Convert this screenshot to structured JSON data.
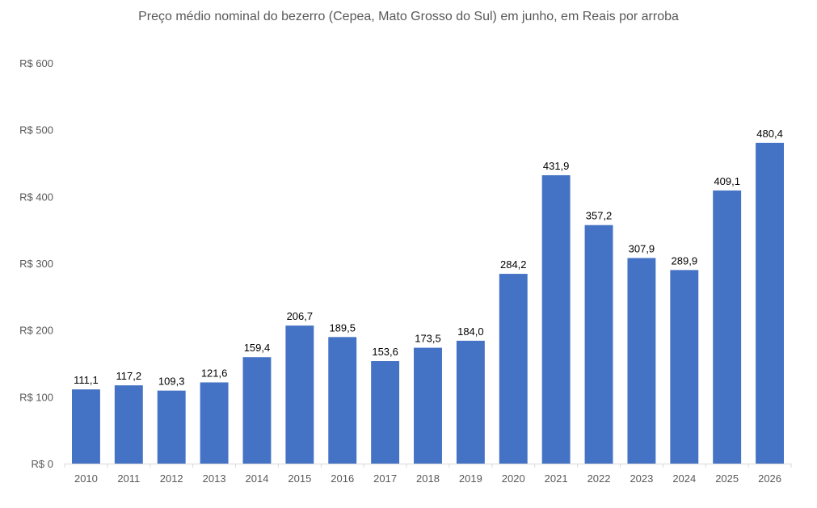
{
  "chart_data": {
    "type": "bar",
    "title": "Preço médio nominal do bezerro (Cepea, Mato Grosso do Sul) em junho, em Reais por arroba",
    "categories": [
      "2010",
      "2011",
      "2012",
      "2013",
      "2014",
      "2015",
      "2016",
      "2017",
      "2018",
      "2019",
      "2020",
      "2021",
      "2022",
      "2023",
      "2024",
      "2025",
      "2026"
    ],
    "values": [
      111.1,
      117.2,
      109.3,
      121.6,
      159.4,
      206.7,
      189.5,
      153.6,
      173.5,
      184.0,
      284.2,
      431.9,
      357.2,
      307.9,
      289.9,
      409.1,
      480.4
    ],
    "data_labels": [
      "111,1",
      "117,2",
      "109,3",
      "121,6",
      "159,4",
      "206,7",
      "189,5",
      "153,6",
      "173,5",
      "184,0",
      "284,2",
      "431,9",
      "357,2",
      "307,9",
      "289,9",
      "409,1",
      "480,4"
    ],
    "ylim": [
      0,
      600
    ],
    "yticks": [
      0,
      100,
      200,
      300,
      400,
      500,
      600
    ],
    "ytick_labels": [
      "R$ 0",
      "R$ 100",
      "R$ 200",
      "R$ 300",
      "R$ 400",
      "R$ 500",
      "R$ 600"
    ],
    "xlabel": "",
    "ylabel": "",
    "grid": false,
    "colors": {
      "bar": "#4472C4",
      "axis": "#D9D9D9"
    }
  }
}
